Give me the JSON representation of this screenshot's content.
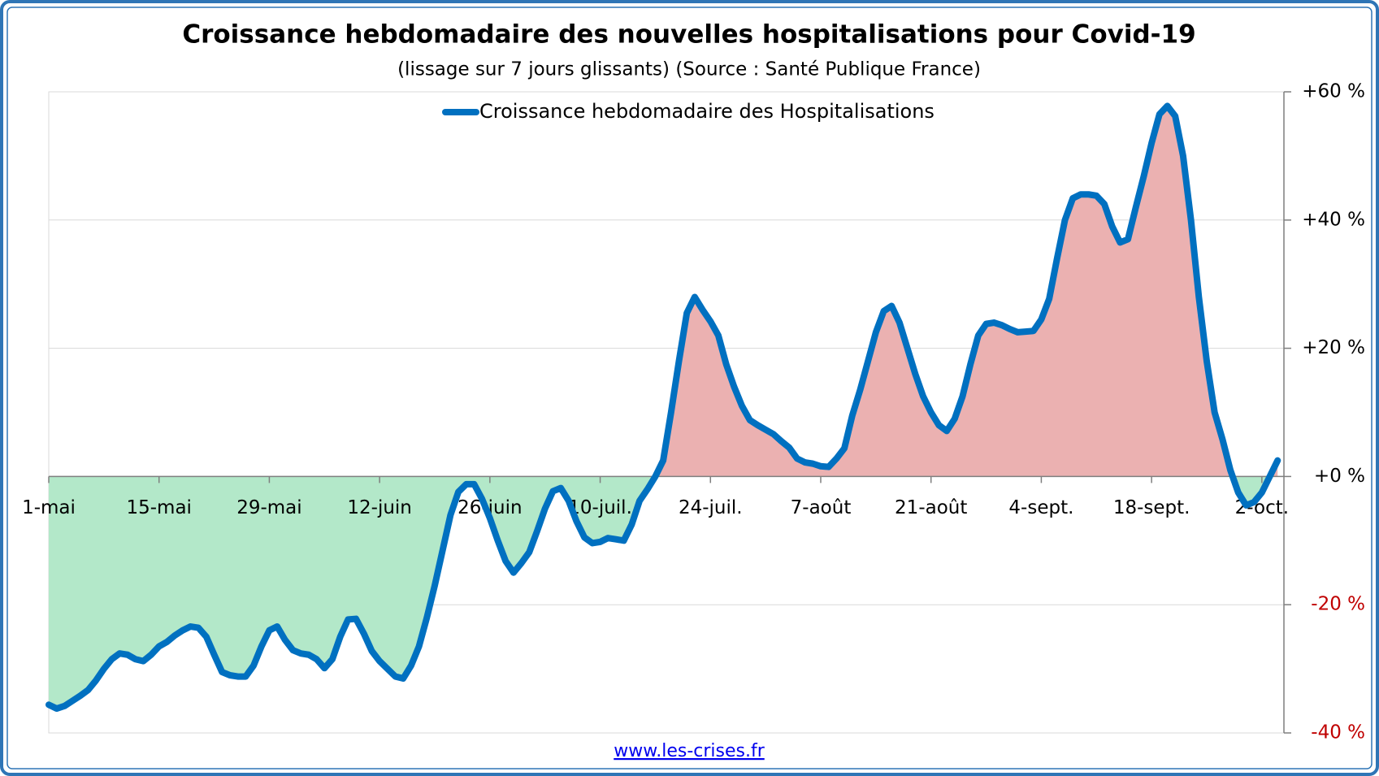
{
  "chart_data": {
    "type": "line",
    "title": "Croissance hebdomadaire des nouvelles hospitalisations pour Covid-19",
    "subtitle": "(lissage sur 7 jours glissants) (Source : Santé Publique France)",
    "footer": "www.les-crises.fr",
    "categories": [
      "1-mai",
      null,
      null,
      null,
      null,
      null,
      null,
      null,
      null,
      null,
      null,
      null,
      null,
      null,
      "15-mai",
      null,
      null,
      null,
      null,
      null,
      null,
      null,
      null,
      null,
      null,
      null,
      null,
      null,
      "29-mai",
      null,
      null,
      null,
      null,
      null,
      null,
      null,
      null,
      null,
      null,
      null,
      null,
      null,
      "12-juin",
      null,
      null,
      null,
      null,
      null,
      null,
      null,
      null,
      null,
      null,
      null,
      null,
      null,
      "26-juin",
      null,
      null,
      null,
      null,
      null,
      null,
      null,
      null,
      null,
      null,
      null,
      null,
      null,
      "10-juil.",
      null,
      null,
      null,
      null,
      null,
      null,
      null,
      null,
      null,
      null,
      null,
      null,
      null,
      "24-juil.",
      null,
      null,
      null,
      null,
      null,
      null,
      null,
      null,
      null,
      null,
      null,
      null,
      null,
      "7-août",
      null,
      null,
      null,
      null,
      null,
      null,
      null,
      null,
      null,
      null,
      null,
      null,
      null,
      "21-août",
      null,
      null,
      null,
      null,
      null,
      null,
      null,
      null,
      null,
      null,
      null,
      null,
      null,
      "4-sept.",
      null,
      null,
      null,
      null,
      null,
      null,
      null,
      null,
      null,
      null,
      null,
      null,
      null,
      "18-sept.",
      null,
      null,
      null,
      null,
      null,
      null,
      null,
      null,
      null,
      null,
      null,
      null,
      null,
      "2-oct.",
      null,
      null
    ],
    "series": [
      {
        "name": "Croissance hebdomadaire des Hospitalisations",
        "color": "#0070c0",
        "values": [
          -35.6,
          -36.2,
          -35.8,
          -35,
          -34.2,
          -33.3,
          -31.8,
          -30,
          -28.5,
          -27.6,
          -27.8,
          -28.5,
          -28.8,
          -27.8,
          -26.5,
          -25.8,
          -24.8,
          -24,
          -23.4,
          -23.6,
          -25,
          -27.8,
          -30.5,
          -31,
          -31.2,
          -31.2,
          -29.5,
          -26.5,
          -24,
          -23.4,
          -25.5,
          -27.1,
          -27.6,
          -27.8,
          -28.5,
          -29.9,
          -28.5,
          -25,
          -22.3,
          -22.2,
          -24.5,
          -27.2,
          -28.8,
          -30,
          -31.2,
          -31.5,
          -29.5,
          -26.5,
          -22,
          -17,
          -11.5,
          -6,
          -2.4,
          -1.2,
          -1.2,
          -3.5,
          -6.5,
          -10,
          -13.2,
          -15,
          -13.5,
          -11.8,
          -8.5,
          -5,
          -2.3,
          -1.8,
          -3.8,
          -7,
          -9.5,
          -10.4,
          -10.2,
          -9.6,
          -9.8,
          -10,
          -7.5,
          -3.8,
          -2,
          0,
          2.5,
          10,
          18,
          25.5,
          28,
          26,
          24.2,
          22,
          17.5,
          14,
          11,
          8.8,
          8,
          7.3,
          6.6,
          5.5,
          4.5,
          2.8,
          2.2,
          2,
          1.6,
          1.5,
          2.8,
          4.4,
          9.5,
          13.5,
          18,
          22.5,
          25.8,
          26.6,
          24,
          20,
          16,
          12.5,
          10,
          8,
          7.1,
          9,
          12.5,
          17.5,
          22,
          23.8,
          24,
          23.6,
          23,
          22.5,
          22.6,
          22.7,
          24.5,
          27.7,
          34,
          40,
          43.4,
          44,
          44,
          43.8,
          42.5,
          39,
          36.5,
          37,
          42,
          46.8,
          52,
          56.5,
          57.8,
          56.2,
          50,
          40,
          28,
          18,
          10,
          5.8,
          1,
          -2.5,
          -4.5,
          -4,
          -2.5,
          0,
          2.5
        ]
      }
    ],
    "positive_fill": "#ebb1b1",
    "negative_fill": "#b3e8c9",
    "ylim": [
      -40,
      60
    ],
    "yticks": [
      {
        "value": -40,
        "label": "-40 %"
      },
      {
        "value": -20,
        "label": "-20 %"
      },
      {
        "value": 0,
        "label": "+0 %"
      },
      {
        "value": 20,
        "label": "+20 %"
      },
      {
        "value": 40,
        "label": "+40 %"
      },
      {
        "value": 60,
        "label": "+60 %"
      }
    ],
    "ytick_color": "#000000",
    "ytick_negative_color": "#c00000",
    "grid": true,
    "legend": "top"
  }
}
